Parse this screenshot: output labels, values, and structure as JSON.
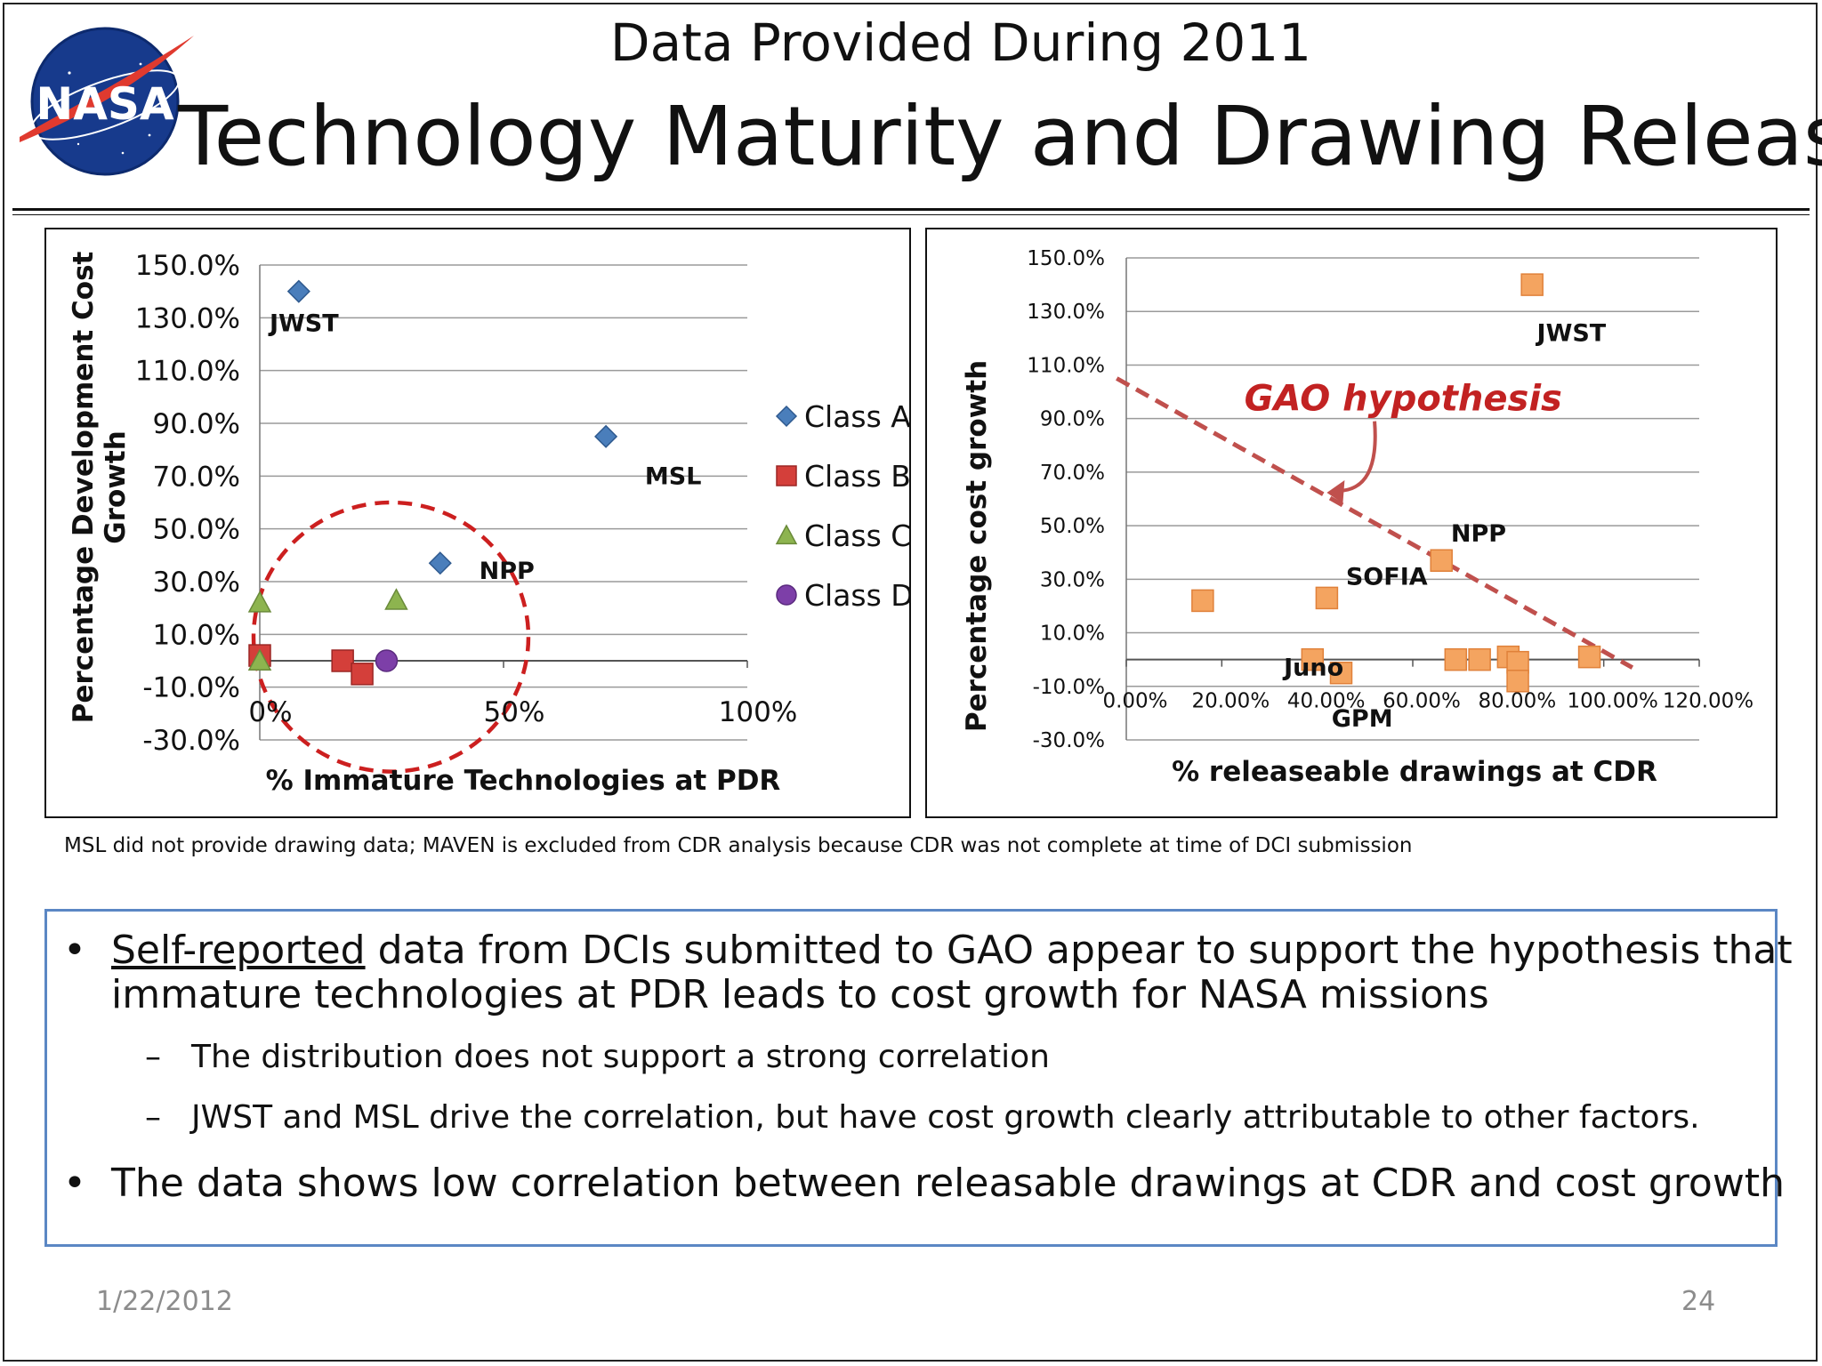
{
  "slide": {
    "supertitle": "Data Provided During 2011",
    "title": "Technology Maturity and Drawing Release",
    "logo_text": "NASA",
    "footnote": "MSL did not provide drawing data; MAVEN is excluded from CDR analysis because CDR was not complete at time of DCI submission",
    "date": "1/22/2012",
    "page_number": "24"
  },
  "bullets": {
    "b1_underlined": "Self-reported",
    "b1_rest": " data from DCIs submitted to GAO appear to support the hypothesis that",
    "b1_line2": "immature technologies at PDR leads to cost growth for NASA missions",
    "sub1": "The distribution does not support a strong correlation",
    "sub2": "JWST and MSL drive the correlation, but  have cost growth clearly attributable to other factors.",
    "b2": "The data shows low correlation between releasable drawings at CDR and cost growth",
    "bullet_char": "•",
    "dash_char": "–"
  },
  "chart_data": [
    {
      "type": "scatter",
      "title": "",
      "xlabel": "% Immature Technologies at PDR",
      "ylabel": "Percentage Development Cost Growth",
      "xlim": [
        0,
        1.0
      ],
      "ylim": [
        -0.3,
        1.5
      ],
      "y_ticks": [
        "150.0%",
        "130.0%",
        "110.0%",
        "90.0%",
        "70.0%",
        "50.0%",
        "30.0%",
        "10.0%",
        "-10.0%",
        "-30.0%"
      ],
      "x_ticks": [
        "0%",
        "50%",
        "100%"
      ],
      "grid": true,
      "legend": "right",
      "series": [
        {
          "name": "Class A",
          "marker": "diamond",
          "color": "#4a7ebb",
          "points": [
            [
              0.08,
              1.4
            ],
            [
              0.71,
              0.85
            ],
            [
              0.37,
              0.37
            ]
          ]
        },
        {
          "name": "Class B",
          "marker": "square",
          "color": "#d43f3a",
          "points": [
            [
              0.0,
              0.02
            ],
            [
              0.17,
              0.0
            ],
            [
              0.21,
              -0.05
            ]
          ]
        },
        {
          "name": "Class C",
          "marker": "triangle",
          "color": "#8db44f",
          "points": [
            [
              0.0,
              0.22
            ],
            [
              0.28,
              0.23
            ],
            [
              0.0,
              0.0
            ]
          ]
        },
        {
          "name": "Class D",
          "marker": "circle",
          "color": "#7d3fa8",
          "points": [
            [
              0.26,
              0.0
            ]
          ]
        }
      ],
      "annotations": [
        {
          "text": "JWST",
          "x": 0.02,
          "y": 1.28
        },
        {
          "text": "MSL",
          "x": 0.79,
          "y": 0.7
        },
        {
          "text": "NPP",
          "x": 0.45,
          "y": 0.34
        }
      ],
      "highlight": "dashed red circle around low-value cluster",
      "highlight_color": "#cc1f1f"
    },
    {
      "type": "scatter",
      "title": "",
      "xlabel": "% releaseable drawings at CDR",
      "ylabel": "Percentage cost growth",
      "xlim": [
        0,
        1.2
      ],
      "ylim": [
        -0.3,
        1.5
      ],
      "y_ticks": [
        "150.0%",
        "130.0%",
        "110.0%",
        "90.0%",
        "70.0%",
        "50.0%",
        "30.0%",
        "10.0%",
        "-10.0%",
        "-30.0%"
      ],
      "x_ticks": [
        "0.00%",
        "20.00%",
        "40.00%",
        "60.00%",
        "80.00%",
        "100.00%",
        "120.00%"
      ],
      "grid": true,
      "legend": "none",
      "marker": "square",
      "color": "#f4a460",
      "points": [
        [
          0.85,
          1.4
        ],
        [
          0.66,
          0.37
        ],
        [
          0.42,
          0.23
        ],
        [
          0.16,
          0.22
        ],
        [
          0.39,
          0.0
        ],
        [
          0.45,
          -0.05
        ],
        [
          0.69,
          0.0
        ],
        [
          0.74,
          0.0
        ],
        [
          0.8,
          0.01
        ],
        [
          0.82,
          -0.01
        ],
        [
          0.82,
          -0.08
        ],
        [
          0.97,
          0.01
        ]
      ],
      "annotations": [
        {
          "text": "JWST",
          "x": 0.86,
          "y": 1.22
        },
        {
          "text": "NPP",
          "x": 0.68,
          "y": 0.47
        },
        {
          "text": "SOFIA",
          "x": 0.46,
          "y": 0.31
        },
        {
          "text": "Juno",
          "x": 0.33,
          "y": -0.03
        },
        {
          "text": "GPM",
          "x": 0.43,
          "y": -0.22
        }
      ],
      "trendline": {
        "label": "GAO hypothesis",
        "from": [
          -0.02,
          1.05
        ],
        "to": [
          1.06,
          -0.03
        ],
        "color": "#c0504d"
      }
    }
  ]
}
